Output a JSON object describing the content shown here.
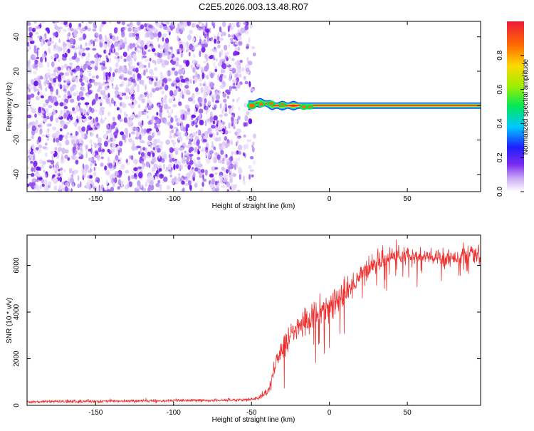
{
  "title": "C2E5.2026.003.13.48.R07",
  "chart_data": [
    {
      "type": "heatmap",
      "xlabel": "Height of straight line (km)",
      "ylabel": "Frequency (Hz)",
      "xlim": [
        -194,
        97
      ],
      "ylim": [
        -50,
        49
      ],
      "x_ticks": [
        -150,
        -100,
        -50,
        0,
        50
      ],
      "y_ticks": [
        -40,
        -20,
        0,
        20,
        40
      ],
      "grid": false,
      "noise_region_x": [
        -194,
        -48
      ],
      "signal_region_x": [
        -52,
        97
      ],
      "signal_center_hz": 0,
      "colorbar": {
        "label": "Normalized spectral amplitude",
        "range": [
          0,
          1
        ],
        "ticks": [
          "0.0",
          "0.2",
          "0.4",
          "0.6",
          "0.8"
        ],
        "colors": [
          "#ffffff",
          "#c9a8f5",
          "#7a2bf0",
          "#1e1eff",
          "#00c8ff",
          "#00e85a",
          "#a0ee00",
          "#ffd800",
          "#ff6a00",
          "#ee1a3c"
        ]
      }
    },
    {
      "type": "line",
      "xlabel": "Height of straight line (km)",
      "ylabel": "SNR (10 * v/v)",
      "xlim": [
        -194,
        97
      ],
      "ylim": [
        0,
        7300
      ],
      "x_ticks": [
        -150,
        -100,
        -50,
        0,
        50
      ],
      "y_ticks": [
        0,
        2000,
        4000,
        6000
      ],
      "grid": false,
      "line_color": "#ee3030",
      "x": [
        -194,
        -180,
        -160,
        -140,
        -120,
        -100,
        -80,
        -60,
        -50,
        -45,
        -40,
        -37,
        -35,
        -30,
        -25,
        -20,
        -15,
        -10,
        -5,
        0,
        5,
        10,
        15,
        20,
        25,
        30,
        35,
        40,
        50,
        60,
        70,
        80,
        90,
        97
      ],
      "y": [
        150,
        160,
        170,
        180,
        190,
        200,
        210,
        230,
        260,
        330,
        550,
        1100,
        1700,
        2500,
        3000,
        3300,
        3600,
        3900,
        4100,
        4300,
        4500,
        4700,
        5200,
        5600,
        5900,
        6100,
        6300,
        6400,
        6400,
        6350,
        6300,
        6350,
        6450,
        6400
      ],
      "noise_amplitude": [
        60,
        60,
        60,
        60,
        60,
        60,
        60,
        60,
        70,
        90,
        150,
        250,
        350,
        450,
        500,
        550,
        600,
        650,
        650,
        650,
        600,
        550,
        500,
        450,
        450,
        400,
        400,
        400,
        350,
        350,
        350,
        350,
        350,
        350
      ]
    }
  ]
}
